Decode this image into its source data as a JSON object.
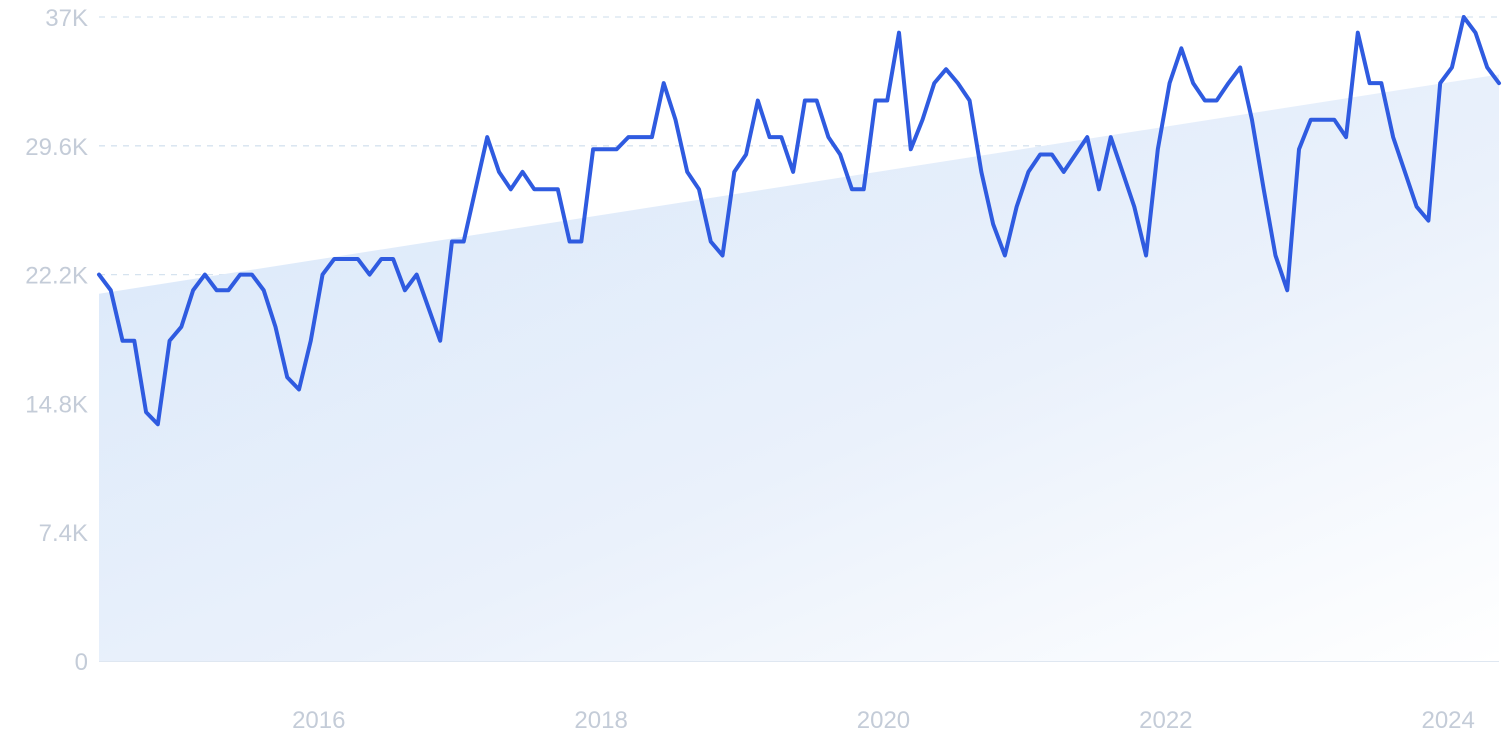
{
  "chart_data": {
    "type": "line",
    "title": "",
    "xlabel": "",
    "ylabel": "",
    "grid": "horizontal-dashed",
    "legend": "none",
    "ylim": [
      0,
      37000
    ],
    "xlim": [
      "2014-07",
      "2024-06"
    ],
    "y_ticks": [
      {
        "value": 0,
        "label": "0"
      },
      {
        "value": 7400,
        "label": "7.4K"
      },
      {
        "value": 14800,
        "label": "14.8K"
      },
      {
        "value": 22200,
        "label": "22.2K"
      },
      {
        "value": 29600,
        "label": "29.6K"
      },
      {
        "value": 37000,
        "label": "37K"
      }
    ],
    "x_ticks": [
      {
        "value": "2016-01",
        "label": "2016"
      },
      {
        "value": "2018-01",
        "label": "2018"
      },
      {
        "value": "2020-01",
        "label": "2020"
      },
      {
        "value": "2022-01",
        "label": "2022"
      },
      {
        "value": "2024-01",
        "label": "2024"
      }
    ],
    "colors": {
      "line": "#2f5be0",
      "trend_fill_top": "#d8e7fa",
      "trend_fill_bottom": "#ffffff",
      "grid": "#d6e3ef",
      "tick_text": "#c4ccd8"
    },
    "trend": {
      "start": [
        "2014-07",
        21100
      ],
      "end": [
        "2024-06",
        33700
      ]
    },
    "series": [
      {
        "points": [
          [
            "2014-07",
            22200
          ],
          [
            "2014-08",
            21300
          ],
          [
            "2014-09",
            18400
          ],
          [
            "2014-10",
            18400
          ],
          [
            "2014-11",
            14300
          ],
          [
            "2014-12",
            13600
          ],
          [
            "2015-01",
            18400
          ],
          [
            "2015-02",
            19200
          ],
          [
            "2015-03",
            21300
          ],
          [
            "2015-04",
            22200
          ],
          [
            "2015-05",
            21300
          ],
          [
            "2015-06",
            21300
          ],
          [
            "2015-07",
            22200
          ],
          [
            "2015-08",
            22200
          ],
          [
            "2015-09",
            21300
          ],
          [
            "2015-10",
            19200
          ],
          [
            "2015-11",
            16300
          ],
          [
            "2015-12",
            15600
          ],
          [
            "2016-01",
            18400
          ],
          [
            "2016-02",
            22200
          ],
          [
            "2016-03",
            23100
          ],
          [
            "2016-04",
            23100
          ],
          [
            "2016-05",
            23100
          ],
          [
            "2016-06",
            22200
          ],
          [
            "2016-07",
            23100
          ],
          [
            "2016-08",
            23100
          ],
          [
            "2016-09",
            21300
          ],
          [
            "2016-10",
            22200
          ],
          [
            "2016-11",
            20300
          ],
          [
            "2016-12",
            18400
          ],
          [
            "2017-01",
            24100
          ],
          [
            "2017-02",
            24100
          ],
          [
            "2017-03",
            27100
          ],
          [
            "2017-04",
            30100
          ],
          [
            "2017-05",
            28100
          ],
          [
            "2017-06",
            27100
          ],
          [
            "2017-07",
            28100
          ],
          [
            "2017-08",
            27100
          ],
          [
            "2017-09",
            27100
          ],
          [
            "2017-10",
            27100
          ],
          [
            "2017-11",
            24100
          ],
          [
            "2017-12",
            24100
          ],
          [
            "2018-01",
            29400
          ],
          [
            "2018-02",
            29400
          ],
          [
            "2018-03",
            29400
          ],
          [
            "2018-04",
            30100
          ],
          [
            "2018-05",
            30100
          ],
          [
            "2018-06",
            30100
          ],
          [
            "2018-07",
            33200
          ],
          [
            "2018-08",
            31100
          ],
          [
            "2018-09",
            28100
          ],
          [
            "2018-10",
            27100
          ],
          [
            "2018-11",
            24100
          ],
          [
            "2018-12",
            23300
          ],
          [
            "2019-01",
            28100
          ],
          [
            "2019-02",
            29100
          ],
          [
            "2019-03",
            32200
          ],
          [
            "2019-04",
            30100
          ],
          [
            "2019-05",
            30100
          ],
          [
            "2019-06",
            28100
          ],
          [
            "2019-07",
            32200
          ],
          [
            "2019-08",
            32200
          ],
          [
            "2019-09",
            30100
          ],
          [
            "2019-10",
            29100
          ],
          [
            "2019-11",
            27100
          ],
          [
            "2019-12",
            27100
          ],
          [
            "2020-01",
            32200
          ],
          [
            "2020-02",
            32200
          ],
          [
            "2020-03",
            36100
          ],
          [
            "2020-04",
            29400
          ],
          [
            "2020-05",
            31100
          ],
          [
            "2020-06",
            33200
          ],
          [
            "2020-07",
            34000
          ],
          [
            "2020-08",
            33200
          ],
          [
            "2020-09",
            32200
          ],
          [
            "2020-10",
            28100
          ],
          [
            "2020-11",
            25100
          ],
          [
            "2020-12",
            23300
          ],
          [
            "2021-01",
            26100
          ],
          [
            "2021-02",
            28100
          ],
          [
            "2021-03",
            29100
          ],
          [
            "2021-04",
            29100
          ],
          [
            "2021-05",
            28100
          ],
          [
            "2021-06",
            29100
          ],
          [
            "2021-07",
            30100
          ],
          [
            "2021-08",
            27100
          ],
          [
            "2021-09",
            30100
          ],
          [
            "2021-10",
            28100
          ],
          [
            "2021-11",
            26100
          ],
          [
            "2021-12",
            23300
          ],
          [
            "2022-01",
            29400
          ],
          [
            "2022-02",
            33200
          ],
          [
            "2022-03",
            35200
          ],
          [
            "2022-04",
            33200
          ],
          [
            "2022-05",
            32200
          ],
          [
            "2022-06",
            32200
          ],
          [
            "2022-07",
            33200
          ],
          [
            "2022-08",
            34100
          ],
          [
            "2022-09",
            31100
          ],
          [
            "2022-10",
            27100
          ],
          [
            "2022-11",
            23300
          ],
          [
            "2022-12",
            21300
          ],
          [
            "2023-01",
            29400
          ],
          [
            "2023-02",
            31100
          ],
          [
            "2023-03",
            31100
          ],
          [
            "2023-04",
            31100
          ],
          [
            "2023-05",
            30100
          ],
          [
            "2023-06",
            36100
          ],
          [
            "2023-07",
            33200
          ],
          [
            "2023-08",
            33200
          ],
          [
            "2023-09",
            30100
          ],
          [
            "2023-10",
            28100
          ],
          [
            "2023-11",
            26100
          ],
          [
            "2023-12",
            25300
          ],
          [
            "2024-01",
            33200
          ],
          [
            "2024-02",
            34100
          ],
          [
            "2024-03",
            37000
          ],
          [
            "2024-04",
            36100
          ],
          [
            "2024-05",
            34100
          ],
          [
            "2024-06",
            33200
          ]
        ]
      }
    ]
  }
}
